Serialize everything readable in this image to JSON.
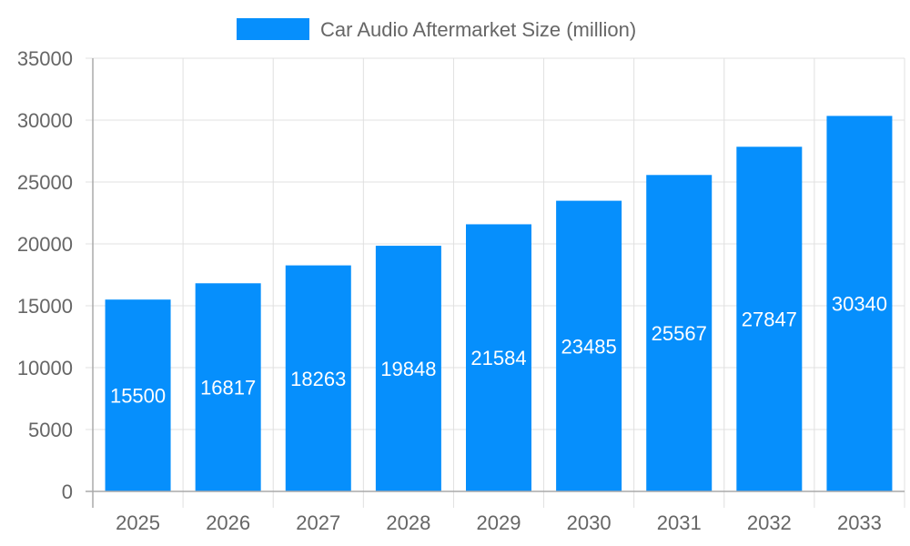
{
  "chart_data": {
    "type": "bar",
    "title": "",
    "xlabel": "",
    "ylabel": "",
    "categories": [
      "2025",
      "2026",
      "2027",
      "2028",
      "2029",
      "2030",
      "2031",
      "2032",
      "2033"
    ],
    "series": [
      {
        "name": "Car Audio Aftermarket Size (million)",
        "values": [
          15500,
          16817,
          18263,
          19848,
          21584,
          23485,
          25567,
          27847,
          30340
        ],
        "color": "#068ffc"
      }
    ],
    "ylim": [
      0,
      35000
    ],
    "yticks": [
      0,
      5000,
      10000,
      15000,
      20000,
      25000,
      30000,
      35000
    ],
    "grid": true,
    "legend_position": "top",
    "data_labels": true
  }
}
